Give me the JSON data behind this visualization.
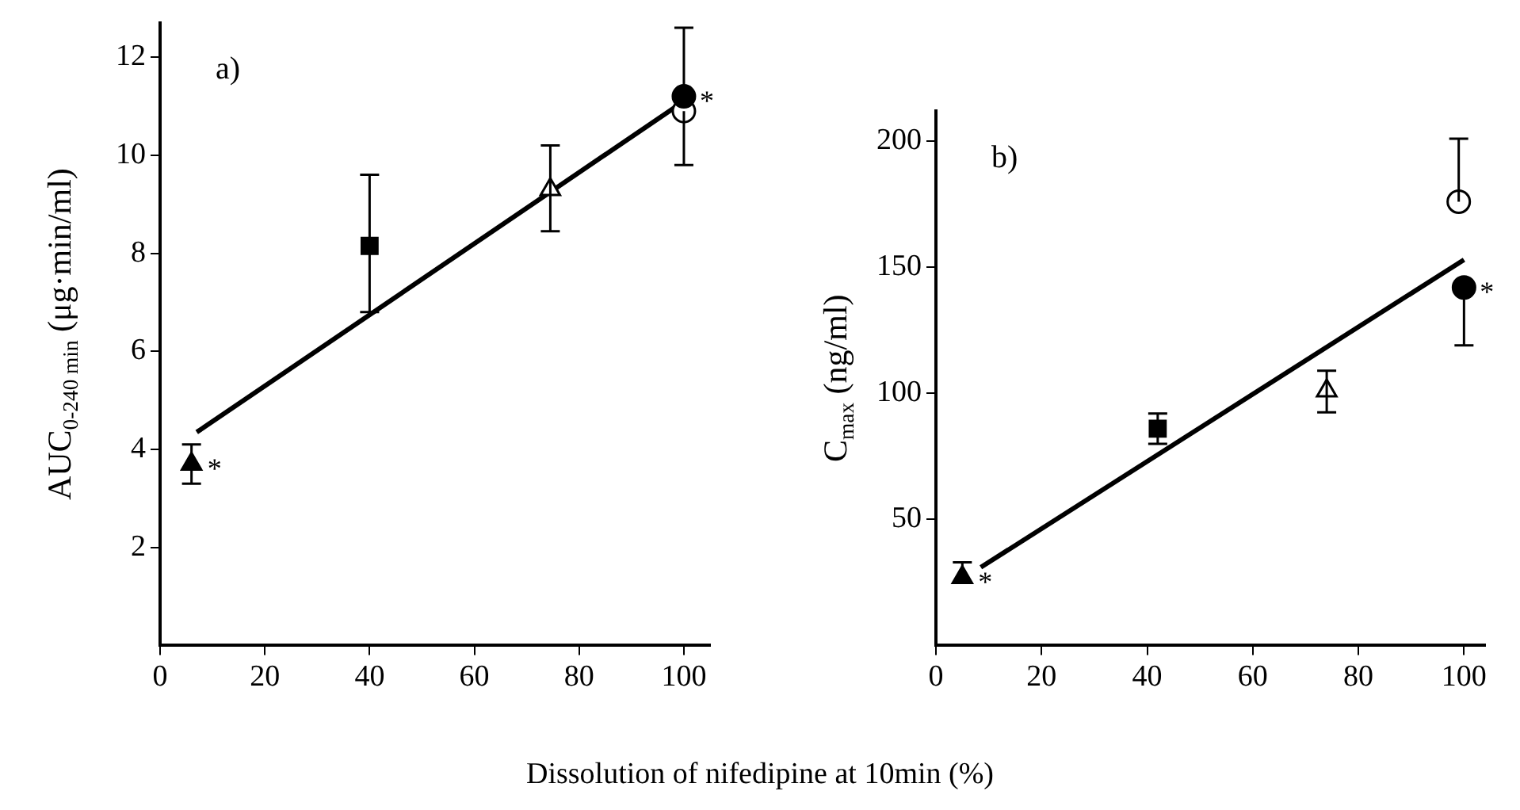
{
  "chart_data": [
    {
      "type": "scatter",
      "xlabel": "Dissolution of nifedipine at 10min (%)",
      "ylabel": "AUC$_{0-240 min}$ (μg·min/ml)",
      "xlim": [
        0,
        105
      ],
      "xticks": [
        0,
        20,
        40,
        60,
        80,
        100
      ],
      "ylim": [
        0,
        12.7
      ],
      "yticks": [
        2,
        4,
        6,
        8,
        10,
        12
      ],
      "grid": false,
      "legend": false,
      "series": [
        {
          "color": "#000000",
          "marker": "triangle",
          "x": [
            6
          ],
          "values": [
            3.7
          ],
          "errors": [
            [
              3.3,
              4.1
            ]
          ]
        },
        {
          "color": "#000000",
          "marker": "square",
          "x": [
            40
          ],
          "values": [
            8.15
          ],
          "errors": [
            [
              6.8,
              9.6
            ]
          ]
        },
        {
          "color": "#ffffff",
          "marker": "triangle",
          "x": [
            74.5
          ],
          "values": [
            9.3
          ],
          "errors": [
            [
              8.45,
              10.2
            ]
          ]
        },
        {
          "color": "#000000",
          "marker": "circle",
          "x": [
            100
          ],
          "values": [
            11.2
          ],
          "errors": [
            [
              11.2,
              12.6
            ]
          ]
        },
        {
          "color": "#ffffff",
          "marker": "circle",
          "x": [
            100
          ],
          "values": [
            10.9
          ],
          "errors": [
            [
              9.8,
              10.9
            ]
          ]
        },
        {
          "type": "line",
          "color": "#000000",
          "x": [
            7,
            100
          ],
          "values": [
            4.35,
            11.1
          ]
        }
      ],
      "annotations": [
        "a)",
        {
          "text": "*",
          "x": 6,
          "y": 3.7
        },
        {
          "text": "*",
          "x": 100,
          "y": 11.2
        }
      ]
    },
    {
      "type": "scatter",
      "ylabel": "C$_{max}$ (ng/ml)",
      "xlim": [
        0,
        104
      ],
      "xticks": [
        0,
        20,
        40,
        60,
        80,
        100
      ],
      "ylim": [
        0,
        212
      ],
      "yticks": [
        50,
        100,
        150,
        200
      ],
      "grid": false,
      "legend": false,
      "series": [
        {
          "color": "#000000",
          "marker": "triangle",
          "x": [
            5
          ],
          "values": [
            27
          ],
          "errors": [
            [
              27,
              33
            ]
          ]
        },
        {
          "color": "#000000",
          "marker": "square",
          "x": [
            42
          ],
          "values": [
            86
          ],
          "errors": [
            [
              80,
              92
            ]
          ]
        },
        {
          "color": "#ffffff",
          "marker": "triangle",
          "x": [
            74
          ],
          "values": [
            101
          ],
          "errors": [
            [
              92.5,
              109
            ]
          ]
        },
        {
          "color": "#000000",
          "marker": "circle",
          "x": [
            100
          ],
          "values": [
            142
          ],
          "errors": [
            [
              119,
              142
            ]
          ]
        },
        {
          "color": "#ffffff",
          "marker": "circle",
          "x": [
            99
          ],
          "values": [
            176
          ],
          "errors": [
            [
              176,
              201
            ]
          ]
        },
        {
          "type": "line",
          "color": "#000000",
          "x": [
            8.5,
            100
          ],
          "values": [
            31,
            153
          ]
        }
      ],
      "annotations": [
        "b)",
        {
          "text": "*",
          "x": 5,
          "y": 27
        },
        {
          "text": "*",
          "x": 100,
          "y": 142
        }
      ]
    }
  ]
}
